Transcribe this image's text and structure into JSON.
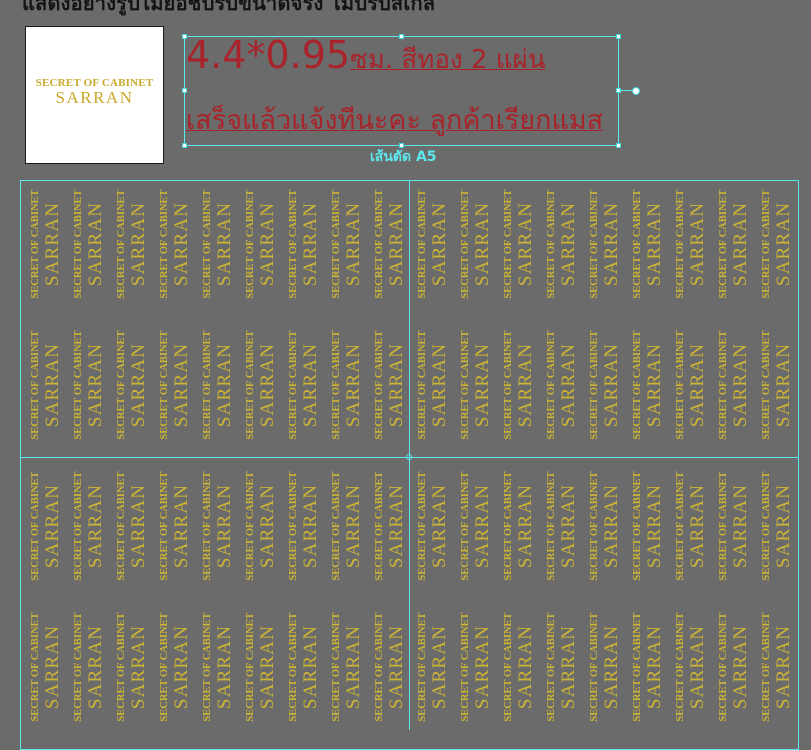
{
  "header": {
    "caption": "แสดงอย่างรูปไม่ยอชปรับขนาดจริง ไม่ปรับสเกล"
  },
  "logo": {
    "line1": "SECRET OF CABINET",
    "line2": "SARRAN"
  },
  "note": {
    "size": "4.4*0.95",
    "size_unit": "ซม. สีทอง 2 แผ่น",
    "instruction": "เสร็จแล้วแจ้งทีนะคะ ลูกค้าเรียกแมส"
  },
  "cutline_label": "เส้นตัด A5",
  "sheet": {
    "label_line1": "SECRET OF CABINET",
    "label_line2": "SARRAN",
    "columns": 18,
    "rows": 4
  },
  "colors": {
    "canvas": "#6b6b6b",
    "note_red": "#a8232a",
    "guide_cyan": "#5ce8ec",
    "gold": "#cdb534"
  }
}
